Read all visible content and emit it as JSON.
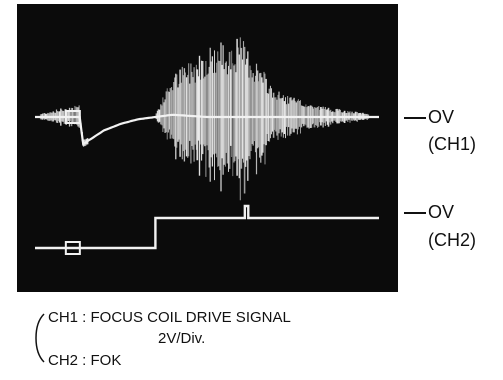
{
  "chart_data": {
    "type": "line",
    "title": "",
    "xlabel": "",
    "ylabel": "",
    "grid": false,
    "series": [
      {
        "name": "CH1",
        "x": [
          0,
          0.13,
          0.14,
          0.2,
          0.25,
          0.3,
          0.35,
          0.4,
          0.5,
          0.6,
          0.65,
          0.7,
          0.8,
          0.9,
          1.0
        ],
        "y": [
          0,
          0,
          -0.6,
          -0.3,
          -0.15,
          -0.05,
          0,
          0.05,
          0,
          0,
          0,
          0,
          0,
          0,
          0
        ],
        "envelope": [
          0.05,
          0.3,
          0.1,
          0.02,
          0.02,
          0.02,
          0.05,
          0.9,
          1.6,
          1.8,
          1.2,
          0.6,
          0.3,
          0.15,
          0.05
        ]
      },
      {
        "name": "CH2",
        "x": [
          0,
          0.34,
          0.35,
          0.6,
          0.61,
          0.62,
          1.0
        ],
        "y": [
          0,
          0,
          1,
          1,
          1.4,
          1,
          1
        ]
      }
    ]
  },
  "scope": {
    "background": "#0b0b0b",
    "trace_color": "#f2f2f2"
  },
  "labels": {
    "ch1_level": "OV",
    "ch1_name": "(CH1)",
    "ch2_level": "OV",
    "ch2_name": "(CH2)"
  },
  "caption": {
    "line1": "CH1 : FOCUS COIL DRIVE SIGNAL",
    "line2": "2V/Div.",
    "line3": "CH2 : FOK"
  }
}
